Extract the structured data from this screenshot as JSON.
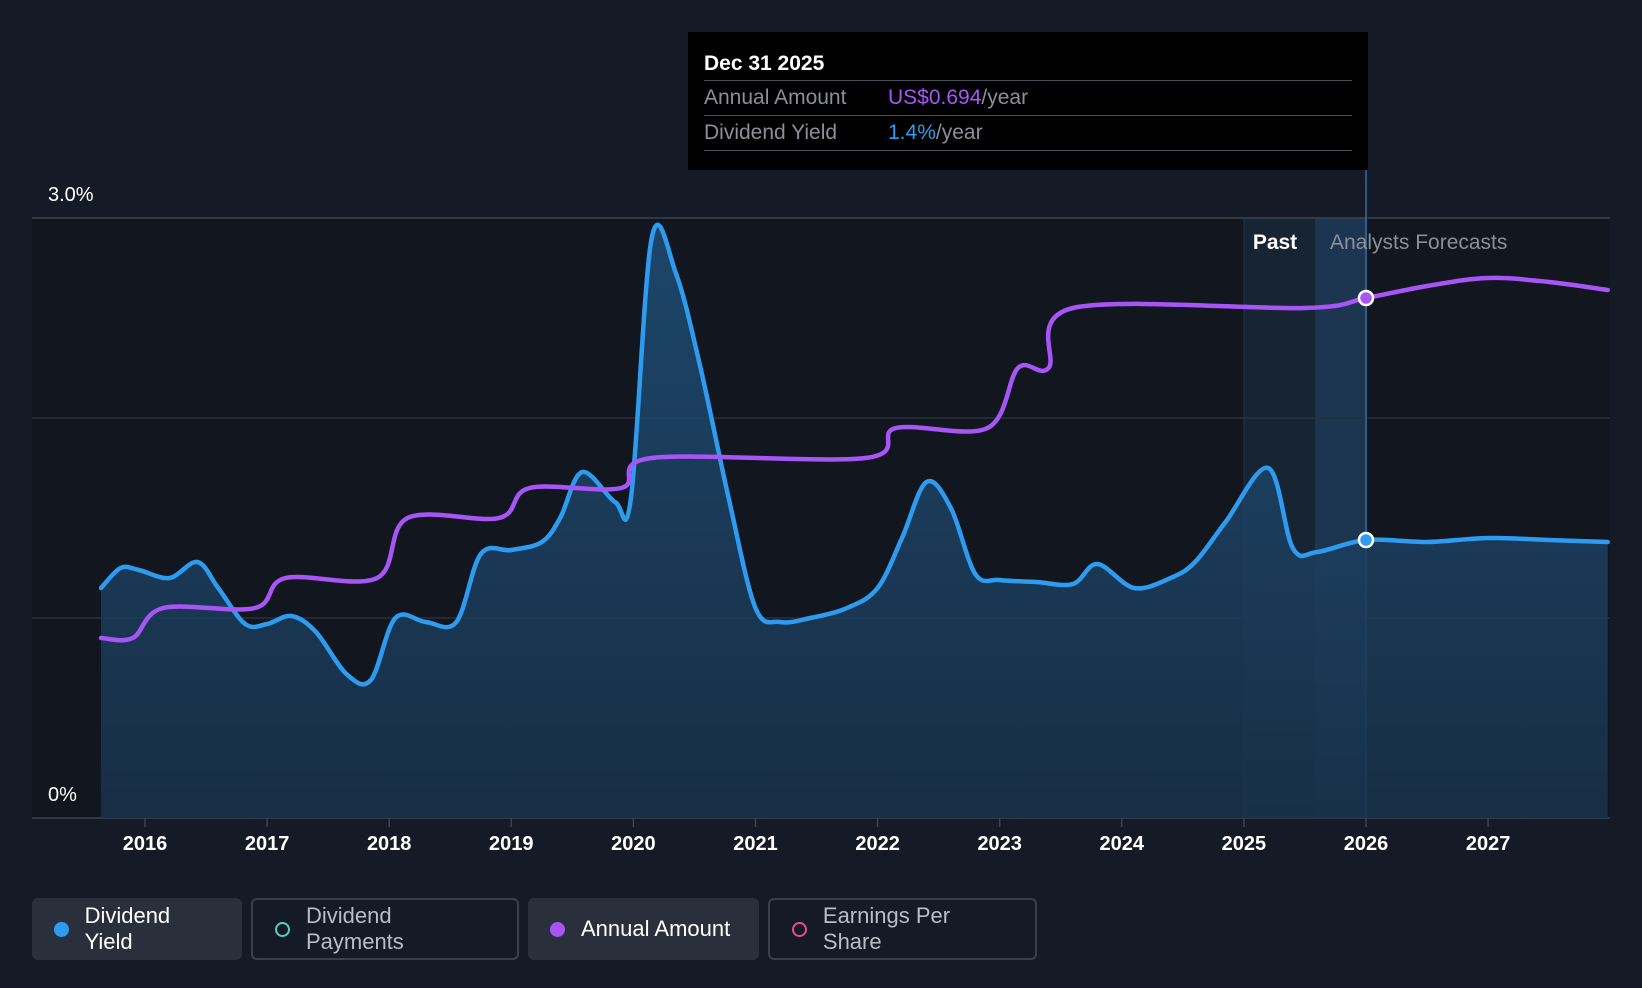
{
  "tooltip": {
    "date": "Dec 31 2025",
    "rows": [
      {
        "label": "Annual Amount",
        "value": "US$0.694",
        "unit": "/year",
        "color": "#a855f7"
      },
      {
        "label": "Dividend Yield",
        "value": "1.4%",
        "unit": "/year",
        "color": "#2d9cf0"
      }
    ]
  },
  "regions": {
    "past": "Past",
    "forecast": "Analysts Forecasts"
  },
  "legend": [
    {
      "label": "Dividend Yield",
      "color": "#2d9cf0",
      "active": true
    },
    {
      "label": "Dividend Payments",
      "color": "#4fd1c5",
      "active": false
    },
    {
      "label": "Annual Amount",
      "color": "#a855f7",
      "active": true
    },
    {
      "label": "Earnings Per Share",
      "color": "#e2508a",
      "active": false
    }
  ],
  "chart_data": {
    "type": "line",
    "x_tick_labels": [
      "2016",
      "2017",
      "2018",
      "2019",
      "2020",
      "2021",
      "2022",
      "2023",
      "2024",
      "2025",
      "2026",
      "2027"
    ],
    "y_tick_labels": [
      "0%",
      "3.0%"
    ],
    "ylim": [
      0,
      3.0
    ],
    "xlim": [
      2015.12,
      2027.98
    ],
    "grid": true,
    "forecast_start": 2026.0,
    "series": [
      {
        "name": "Dividend Yield",
        "color": "#2d9cf0",
        "points": [
          [
            2015.64,
            1.15
          ],
          [
            2015.8,
            1.25
          ],
          [
            2015.95,
            1.24
          ],
          [
            2016.2,
            1.2
          ],
          [
            2016.43,
            1.28
          ],
          [
            2016.6,
            1.15
          ],
          [
            2016.82,
            0.97
          ],
          [
            2017.0,
            0.97
          ],
          [
            2017.2,
            1.01
          ],
          [
            2017.4,
            0.93
          ],
          [
            2017.65,
            0.72
          ],
          [
            2017.85,
            0.69
          ],
          [
            2018.05,
            1.0
          ],
          [
            2018.3,
            0.98
          ],
          [
            2018.55,
            0.98
          ],
          [
            2018.75,
            1.32
          ],
          [
            2019.0,
            1.34
          ],
          [
            2019.25,
            1.38
          ],
          [
            2019.4,
            1.5
          ],
          [
            2019.58,
            1.73
          ],
          [
            2019.85,
            1.58
          ],
          [
            2019.98,
            1.6
          ],
          [
            2020.15,
            2.9
          ],
          [
            2020.35,
            2.72
          ],
          [
            2020.55,
            2.25
          ],
          [
            2020.78,
            1.6
          ],
          [
            2021.0,
            1.05
          ],
          [
            2021.2,
            0.98
          ],
          [
            2021.45,
            1.0
          ],
          [
            2021.75,
            1.05
          ],
          [
            2022.0,
            1.15
          ],
          [
            2022.2,
            1.4
          ],
          [
            2022.4,
            1.68
          ],
          [
            2022.6,
            1.55
          ],
          [
            2022.8,
            1.22
          ],
          [
            2023.0,
            1.19
          ],
          [
            2023.3,
            1.18
          ],
          [
            2023.6,
            1.17
          ],
          [
            2023.8,
            1.27
          ],
          [
            2024.1,
            1.15
          ],
          [
            2024.4,
            1.2
          ],
          [
            2024.6,
            1.28
          ],
          [
            2024.85,
            1.48
          ],
          [
            2025.2,
            1.75
          ],
          [
            2025.4,
            1.35
          ],
          [
            2025.6,
            1.33
          ],
          [
            2026.0,
            1.39
          ],
          [
            2026.5,
            1.38
          ],
          [
            2027.0,
            1.4
          ],
          [
            2027.5,
            1.39
          ],
          [
            2027.98,
            1.38
          ]
        ]
      },
      {
        "name": "Annual Amount",
        "color": "#a855f7",
        "points": [
          [
            2015.64,
            0.9
          ],
          [
            2015.9,
            0.9
          ],
          [
            2016.15,
            1.05
          ],
          [
            2016.9,
            1.05
          ],
          [
            2017.15,
            1.2
          ],
          [
            2017.9,
            1.2
          ],
          [
            2018.15,
            1.5
          ],
          [
            2018.9,
            1.5
          ],
          [
            2019.15,
            1.65
          ],
          [
            2019.9,
            1.65
          ],
          [
            2020.15,
            1.8
          ],
          [
            2021.9,
            1.8
          ],
          [
            2022.15,
            1.95
          ],
          [
            2022.9,
            1.95
          ],
          [
            2023.15,
            2.25
          ],
          [
            2023.4,
            2.25
          ],
          [
            2023.6,
            2.55
          ],
          [
            2025.5,
            2.55
          ],
          [
            2026.0,
            2.6
          ],
          [
            2026.5,
            2.66
          ],
          [
            2027.0,
            2.7
          ],
          [
            2027.5,
            2.68
          ],
          [
            2027.98,
            2.64
          ]
        ]
      }
    ],
    "highlight_points": [
      {
        "series": "Annual Amount",
        "x": 2026.0,
        "y": 2.6
      },
      {
        "series": "Dividend Yield",
        "x": 2026.0,
        "y": 1.39
      }
    ]
  }
}
